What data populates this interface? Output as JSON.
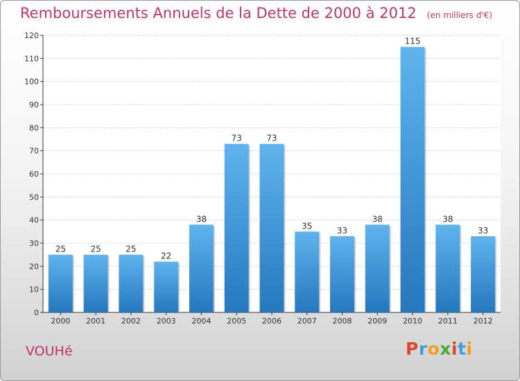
{
  "chart_data": {
    "type": "bar",
    "title": "Remboursements Annuels de la Dette de 2000 à 2012",
    "subtitle": "(en milliers d'€)",
    "categories": [
      "2000",
      "2001",
      "2002",
      "2003",
      "2004",
      "2005",
      "2006",
      "2007",
      "2008",
      "2009",
      "2010",
      "2011",
      "2012"
    ],
    "values": [
      25,
      25,
      25,
      22,
      38,
      73,
      73,
      35,
      33,
      38,
      115,
      38,
      33
    ],
    "ylim": [
      0,
      120
    ],
    "yticks": [
      0,
      10,
      20,
      30,
      40,
      50,
      60,
      70,
      80,
      90,
      100,
      110,
      120
    ],
    "grid": true,
    "bar_color": "#3a8fd6",
    "xlabel": "",
    "ylabel": ""
  },
  "footer": {
    "commune": "VOUHé",
    "logo_text": "Proxiti"
  },
  "colors": {
    "title": "#c0336b",
    "logo": [
      "#e0442a",
      "#3aa0e0",
      "#f0a020",
      "#4aaa3a",
      "#e0442a",
      "#3aa0e0",
      "#f0a020"
    ]
  }
}
